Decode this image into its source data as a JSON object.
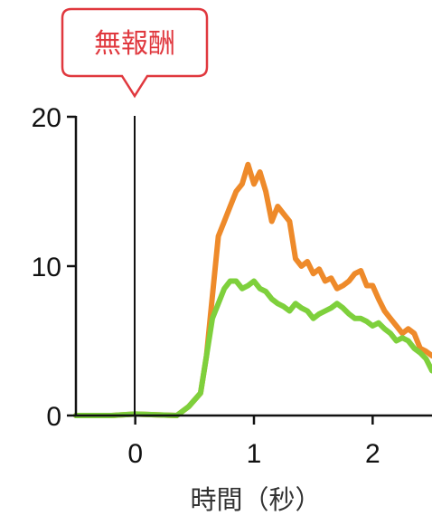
{
  "chart_data": {
    "type": "line",
    "xlabel": "時間（秒）",
    "ylabel": "",
    "xlim": [
      -0.5,
      2.5
    ],
    "ylim": [
      0,
      20
    ],
    "x_ticks": [
      0,
      1,
      2
    ],
    "x_tick_labels": [
      "0",
      "1",
      "2"
    ],
    "y_ticks": [
      0,
      10,
      20
    ],
    "y_tick_labels": [
      "0",
      "10",
      "20"
    ],
    "grid": false,
    "legend": "none",
    "annotations": [
      {
        "text": "無報酬",
        "x": 0,
        "style": "callout"
      }
    ],
    "series": [
      {
        "color": "#ee8a2a",
        "x": [
          -0.5,
          -0.2,
          0.0,
          0.35,
          0.45,
          0.55,
          0.6,
          0.65,
          0.7,
          0.75,
          0.8,
          0.85,
          0.9,
          0.95,
          1.0,
          1.05,
          1.1,
          1.15,
          1.2,
          1.25,
          1.3,
          1.35,
          1.4,
          1.45,
          1.5,
          1.55,
          1.6,
          1.65,
          1.7,
          1.75,
          1.8,
          1.85,
          1.9,
          1.95,
          2.0,
          2.05,
          2.1,
          2.15,
          2.2,
          2.25,
          2.3,
          2.35,
          2.4,
          2.45,
          2.5
        ],
        "values": [
          0,
          0,
          0.1,
          0,
          0.6,
          1.5,
          4,
          8,
          12,
          13,
          14,
          15,
          15.5,
          16.8,
          15.5,
          16.3,
          15,
          13,
          14,
          13.5,
          13,
          10.5,
          10,
          10.3,
          9.5,
          9.8,
          9,
          9.2,
          8.5,
          8.7,
          9,
          9.5,
          9.7,
          8.7,
          8.7,
          7.8,
          7,
          6.5,
          6,
          5.5,
          5.8,
          5.5,
          4.5,
          4.3,
          4
        ]
      },
      {
        "color": "#7ed03c",
        "x": [
          -0.5,
          -0.2,
          0.0,
          0.35,
          0.45,
          0.55,
          0.6,
          0.65,
          0.7,
          0.75,
          0.8,
          0.85,
          0.9,
          0.95,
          1.0,
          1.05,
          1.1,
          1.15,
          1.2,
          1.25,
          1.3,
          1.35,
          1.4,
          1.45,
          1.5,
          1.55,
          1.6,
          1.65,
          1.7,
          1.75,
          1.8,
          1.85,
          1.9,
          1.95,
          2.0,
          2.05,
          2.1,
          2.15,
          2.2,
          2.25,
          2.3,
          2.35,
          2.4,
          2.45,
          2.5
        ],
        "values": [
          0,
          0,
          0.1,
          0,
          0.6,
          1.5,
          4,
          6.5,
          7.5,
          8.5,
          9,
          9,
          8.5,
          8.7,
          9,
          8.5,
          8.3,
          7.8,
          7.5,
          7.3,
          7,
          7.5,
          7.2,
          7,
          6.5,
          6.8,
          7,
          7.2,
          7.5,
          7.2,
          6.8,
          6.5,
          6.5,
          6.3,
          6,
          6.2,
          5.8,
          5.5,
          5,
          5.2,
          5,
          4.5,
          4.2,
          3.8,
          3
        ]
      }
    ]
  }
}
